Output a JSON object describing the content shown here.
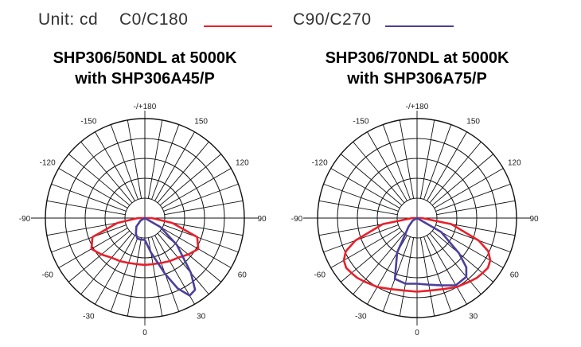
{
  "legend": {
    "unit_label": "Unit: cd",
    "c0_label": "C0/C180",
    "c90_label": "C90/C270",
    "c0_color": "#e8202a",
    "c90_color": "#4b3f9e"
  },
  "chart_data": [
    {
      "type": "polar",
      "title_line1": "SHP306/50NDL at 5000K",
      "title_line2": "with SHP306A45/P",
      "angle_labels": [
        "-/+180",
        "150",
        "120",
        "90",
        "60",
        "30",
        "0",
        "-30",
        "-60",
        "-90",
        "-120",
        "-150"
      ],
      "rings": 5,
      "radial_max": 1.0,
      "series": [
        {
          "name": "C0/C180",
          "color": "#e8202a",
          "angles": [
            -90,
            -80,
            -70,
            -60,
            -50,
            -40,
            -30,
            -20,
            -10,
            0,
            10,
            20,
            30,
            40,
            50,
            60,
            70,
            80,
            90
          ],
          "values": [
            0.07,
            0.28,
            0.56,
            0.62,
            0.57,
            0.52,
            0.5,
            0.48,
            0.47,
            0.47,
            0.47,
            0.48,
            0.5,
            0.52,
            0.57,
            0.62,
            0.56,
            0.28,
            0.07
          ]
        },
        {
          "name": "C90/C270",
          "color": "#4b3f9e",
          "angles": [
            -90,
            -60,
            -45,
            -30,
            -20,
            -10,
            0,
            10,
            20,
            25,
            30,
            35,
            40,
            50,
            60,
            90
          ],
          "values": [
            0.0,
            0.05,
            0.12,
            0.18,
            0.22,
            0.22,
            0.22,
            0.35,
            0.6,
            0.78,
            0.9,
            0.88,
            0.72,
            0.42,
            0.18,
            0.0
          ]
        }
      ]
    },
    {
      "type": "polar",
      "title_line1": "SHP306/70NDL at 5000K",
      "title_line2": "with SHP306A75/P",
      "angle_labels": [
        "-/+180",
        "150",
        "120",
        "90",
        "60",
        "30",
        "0",
        "-30",
        "-60",
        "-90",
        "-120",
        "-150"
      ],
      "rings": 5,
      "radial_max": 1.0,
      "series": [
        {
          "name": "C0/C180",
          "color": "#e8202a",
          "angles": [
            -90,
            -80,
            -70,
            -65,
            -60,
            -55,
            -50,
            -45,
            -40,
            -30,
            -20,
            -10,
            0,
            10,
            20,
            30,
            40,
            45,
            50,
            55,
            60,
            65,
            70,
            80,
            90
          ],
          "values": [
            0.05,
            0.35,
            0.66,
            0.79,
            0.85,
            0.87,
            0.86,
            0.85,
            0.83,
            0.8,
            0.76,
            0.74,
            0.74,
            0.74,
            0.76,
            0.8,
            0.83,
            0.85,
            0.86,
            0.87,
            0.85,
            0.79,
            0.66,
            0.35,
            0.05
          ]
        },
        {
          "name": "C90/C270",
          "color": "#4b3f9e",
          "angles": [
            -90,
            -60,
            -45,
            -30,
            -20,
            -10,
            0,
            10,
            20,
            30,
            40,
            45,
            50,
            60,
            90
          ],
          "values": [
            0.0,
            0.05,
            0.12,
            0.4,
            0.65,
            0.67,
            0.66,
            0.68,
            0.72,
            0.78,
            0.77,
            0.7,
            0.55,
            0.28,
            0.0
          ]
        }
      ]
    }
  ]
}
